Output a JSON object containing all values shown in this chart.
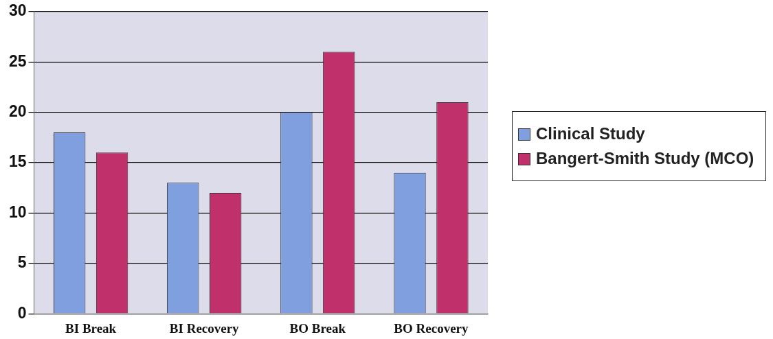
{
  "chart_data": {
    "type": "bar",
    "categories": [
      "BI Break",
      "BI Recovery",
      "BO Break",
      "BO Recovery"
    ],
    "series": [
      {
        "name": "Clinical Study",
        "color": "#7f9fdf",
        "values": [
          18,
          13,
          20,
          14
        ]
      },
      {
        "name": "Bangert-Smith Study (MCO)",
        "color": "#c0306a",
        "values": [
          16,
          12,
          26,
          21
        ]
      }
    ],
    "ylim": [
      0,
      30
    ],
    "yticks": [
      0,
      5,
      10,
      15,
      20,
      25,
      30
    ],
    "grid": "y",
    "legend": "right"
  }
}
